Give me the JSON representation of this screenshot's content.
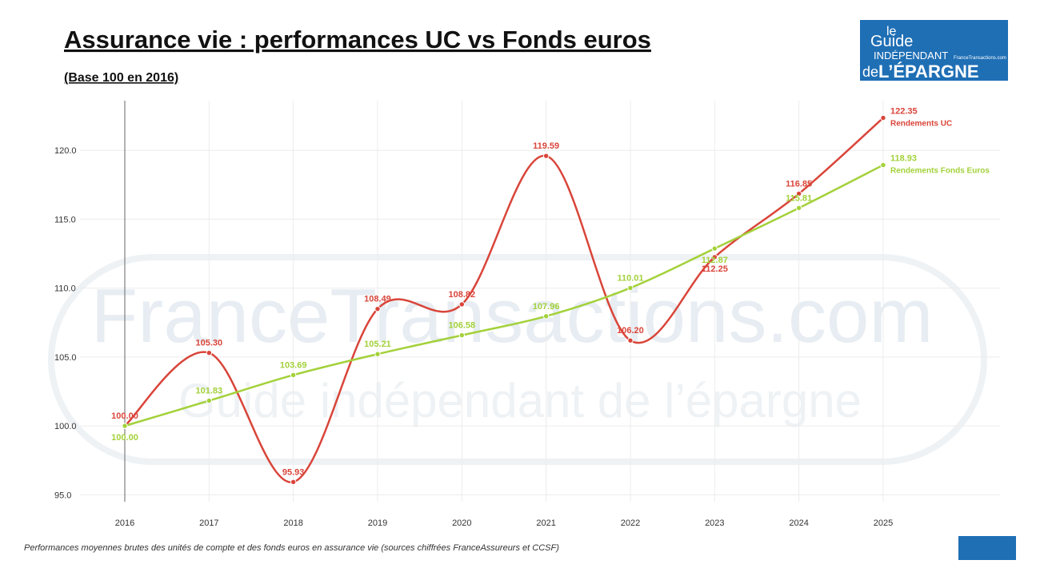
{
  "chart_data": {
    "type": "line",
    "title": "Assurance vie : performances UC vs Fonds euros",
    "subtitle": "(Base 100 en 2016)",
    "footnote": "Performances moyennes brutes des unités de compte et des fonds euros en assurance vie (sources chiffrées FranceAssureurs et CCSF)",
    "watermark": [
      "FranceTransactions.com",
      "Guide indépendant de l’épargne"
    ],
    "logo": [
      "le",
      "Guide",
      "INDÉPENDANT",
      "de",
      "L’ÉPARGNE",
      "FranceTransactions.com"
    ],
    "categories": [
      "2016",
      "2017",
      "2018",
      "2019",
      "2020",
      "2021",
      "2022",
      "2023",
      "2024",
      "2025"
    ],
    "series": [
      {
        "name": "Rendements UC",
        "color": "#d9453a",
        "values": [
          100,
          105.3,
          95.93,
          108.49,
          108.82,
          119.59,
          106.2,
          112.25,
          116.85,
          122.35
        ],
        "value_labels": [
          "100.00",
          "105.30",
          "95.93",
          "108.49",
          "108.82",
          "119.59",
          "106.20",
          "112.25",
          "116.85",
          "122.35"
        ]
      },
      {
        "name": "Rendements Fonds Euros",
        "color": "#a3d13a",
        "values": [
          100,
          101.83,
          103.69,
          105.21,
          106.58,
          107.96,
          110.01,
          112.87,
          115.81,
          118.93
        ],
        "value_labels": [
          "100.00",
          "101.83",
          "103.69",
          "105.21",
          "106.58",
          "107.96",
          "110.01",
          "112.87",
          "115.81",
          "118.93"
        ]
      }
    ],
    "ylim": [
      94.5,
      123.6
    ],
    "yticks": [
      {
        "value": 95,
        "label": "95.0"
      },
      {
        "value": 100,
        "label": "100.0"
      },
      {
        "value": 105,
        "label": "105.0"
      },
      {
        "value": 110,
        "label": "110.0"
      },
      {
        "value": 115,
        "label": "115.0"
      },
      {
        "value": 120,
        "label": "120.0"
      }
    ],
    "grid": true
  }
}
